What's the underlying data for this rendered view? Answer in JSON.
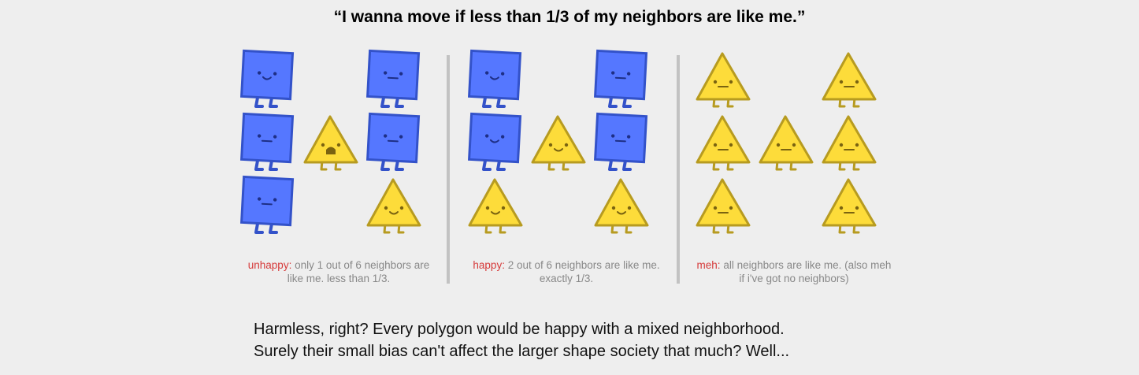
{
  "headline": "“I wanna move if less than 1/3 of my neighbors are like me.”",
  "colors": {
    "square_fill": "#5577ff",
    "square_stroke": "#3352c9",
    "triangle_fill": "#fddc3a",
    "triangle_stroke": "#b79b20",
    "mood_label": "#d63b3b",
    "caption_text": "#888888"
  },
  "panels": [
    {
      "mood": "unhappy:",
      "caption": "only 1 out of 6 neighbors are like me. less than 1/3.",
      "grid": [
        [
          {
            "shape": "square",
            "face": "happy"
          },
          null,
          {
            "shape": "square",
            "face": "meh"
          }
        ],
        [
          {
            "shape": "square",
            "face": "meh"
          },
          {
            "shape": "triangle",
            "face": "sad"
          },
          {
            "shape": "square",
            "face": "meh"
          }
        ],
        [
          {
            "shape": "square",
            "face": "meh"
          },
          null,
          {
            "shape": "triangle",
            "face": "happy"
          }
        ]
      ]
    },
    {
      "mood": "happy:",
      "caption": "2 out of 6 neighbors are like me. exactly 1/3.",
      "grid": [
        [
          {
            "shape": "square",
            "face": "happy"
          },
          null,
          {
            "shape": "square",
            "face": "meh"
          }
        ],
        [
          {
            "shape": "square",
            "face": "happy"
          },
          {
            "shape": "triangle",
            "face": "happy"
          },
          {
            "shape": "square",
            "face": "meh"
          }
        ],
        [
          {
            "shape": "triangle",
            "face": "happy"
          },
          null,
          {
            "shape": "triangle",
            "face": "happy"
          }
        ]
      ]
    },
    {
      "mood": "meh:",
      "caption": "all neighbors are like me. (also meh if i've got no neighbors)",
      "grid": [
        [
          {
            "shape": "triangle",
            "face": "meh"
          },
          null,
          {
            "shape": "triangle",
            "face": "meh"
          }
        ],
        [
          {
            "shape": "triangle",
            "face": "meh"
          },
          {
            "shape": "triangle",
            "face": "meh"
          },
          {
            "shape": "triangle",
            "face": "meh"
          }
        ],
        [
          {
            "shape": "triangle",
            "face": "meh"
          },
          null,
          {
            "shape": "triangle",
            "face": "meh"
          }
        ]
      ]
    }
  ],
  "body_lines": [
    "Harmless, right? Every polygon would be happy with a mixed neighborhood.",
    "Surely their small bias can't affect the larger shape society that much? Well..."
  ]
}
